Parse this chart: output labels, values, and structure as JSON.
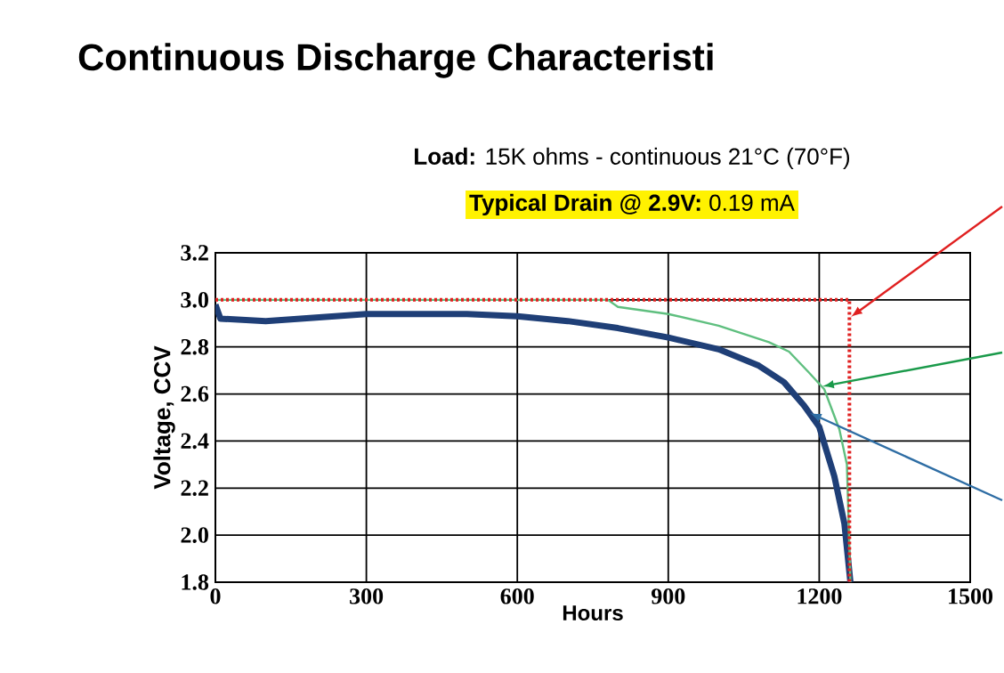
{
  "chart_data": {
    "type": "line",
    "title": "Continuous Discharge Characteristi",
    "subtitle": "**Load:** 15K ohms - continuous  21°C (70°F)",
    "annotations": [
      "**Typical Drain @ 2.9V:** 0.19 mA"
    ],
    "xlabel": "Hours",
    "ylabel": "Voltage, CCV",
    "xlim": [
      0,
      1500
    ],
    "xticks": [
      0,
      300,
      600,
      900,
      1200,
      1500
    ],
    "ylim": [
      1.8,
      3.2
    ],
    "yticks": [
      1.8,
      {
        "value": 2.0,
        "label": "2.0"
      },
      2.2,
      2.4,
      2.6,
      2.8,
      {
        "value": 3.0,
        "label": "3.0"
      },
      3.2
    ],
    "grid": true,
    "marker": "none",
    "line_style": "solid",
    "series": [
      {
        "color": "#1f3f77",
        "x": [
          0,
          10,
          100,
          300,
          500,
          600,
          700,
          800,
          900,
          1000,
          1080,
          1130,
          1170,
          1200,
          1230,
          1250,
          1262
        ],
        "values": [
          2.98,
          2.92,
          2.91,
          2.94,
          2.94,
          2.93,
          2.91,
          2.88,
          2.84,
          2.79,
          2.72,
          2.65,
          2.55,
          2.46,
          2.25,
          2.05,
          1.8
        ]
      },
      {
        "color": "#5fbf7f",
        "x": [
          0,
          780,
          800,
          900,
          1000,
          1100,
          1140,
          1180,
          1210,
          1240,
          1255,
          1262
        ],
        "values": [
          3.0,
          3.0,
          2.97,
          2.94,
          2.89,
          2.82,
          2.78,
          2.69,
          2.62,
          2.45,
          2.3,
          1.8
        ]
      },
      {
        "color": "#e02020",
        "line_style": "dotted",
        "x": [
          0,
          1260,
          1260
        ],
        "values": [
          3.0,
          3.0,
          1.8
        ]
      }
    ]
  }
}
